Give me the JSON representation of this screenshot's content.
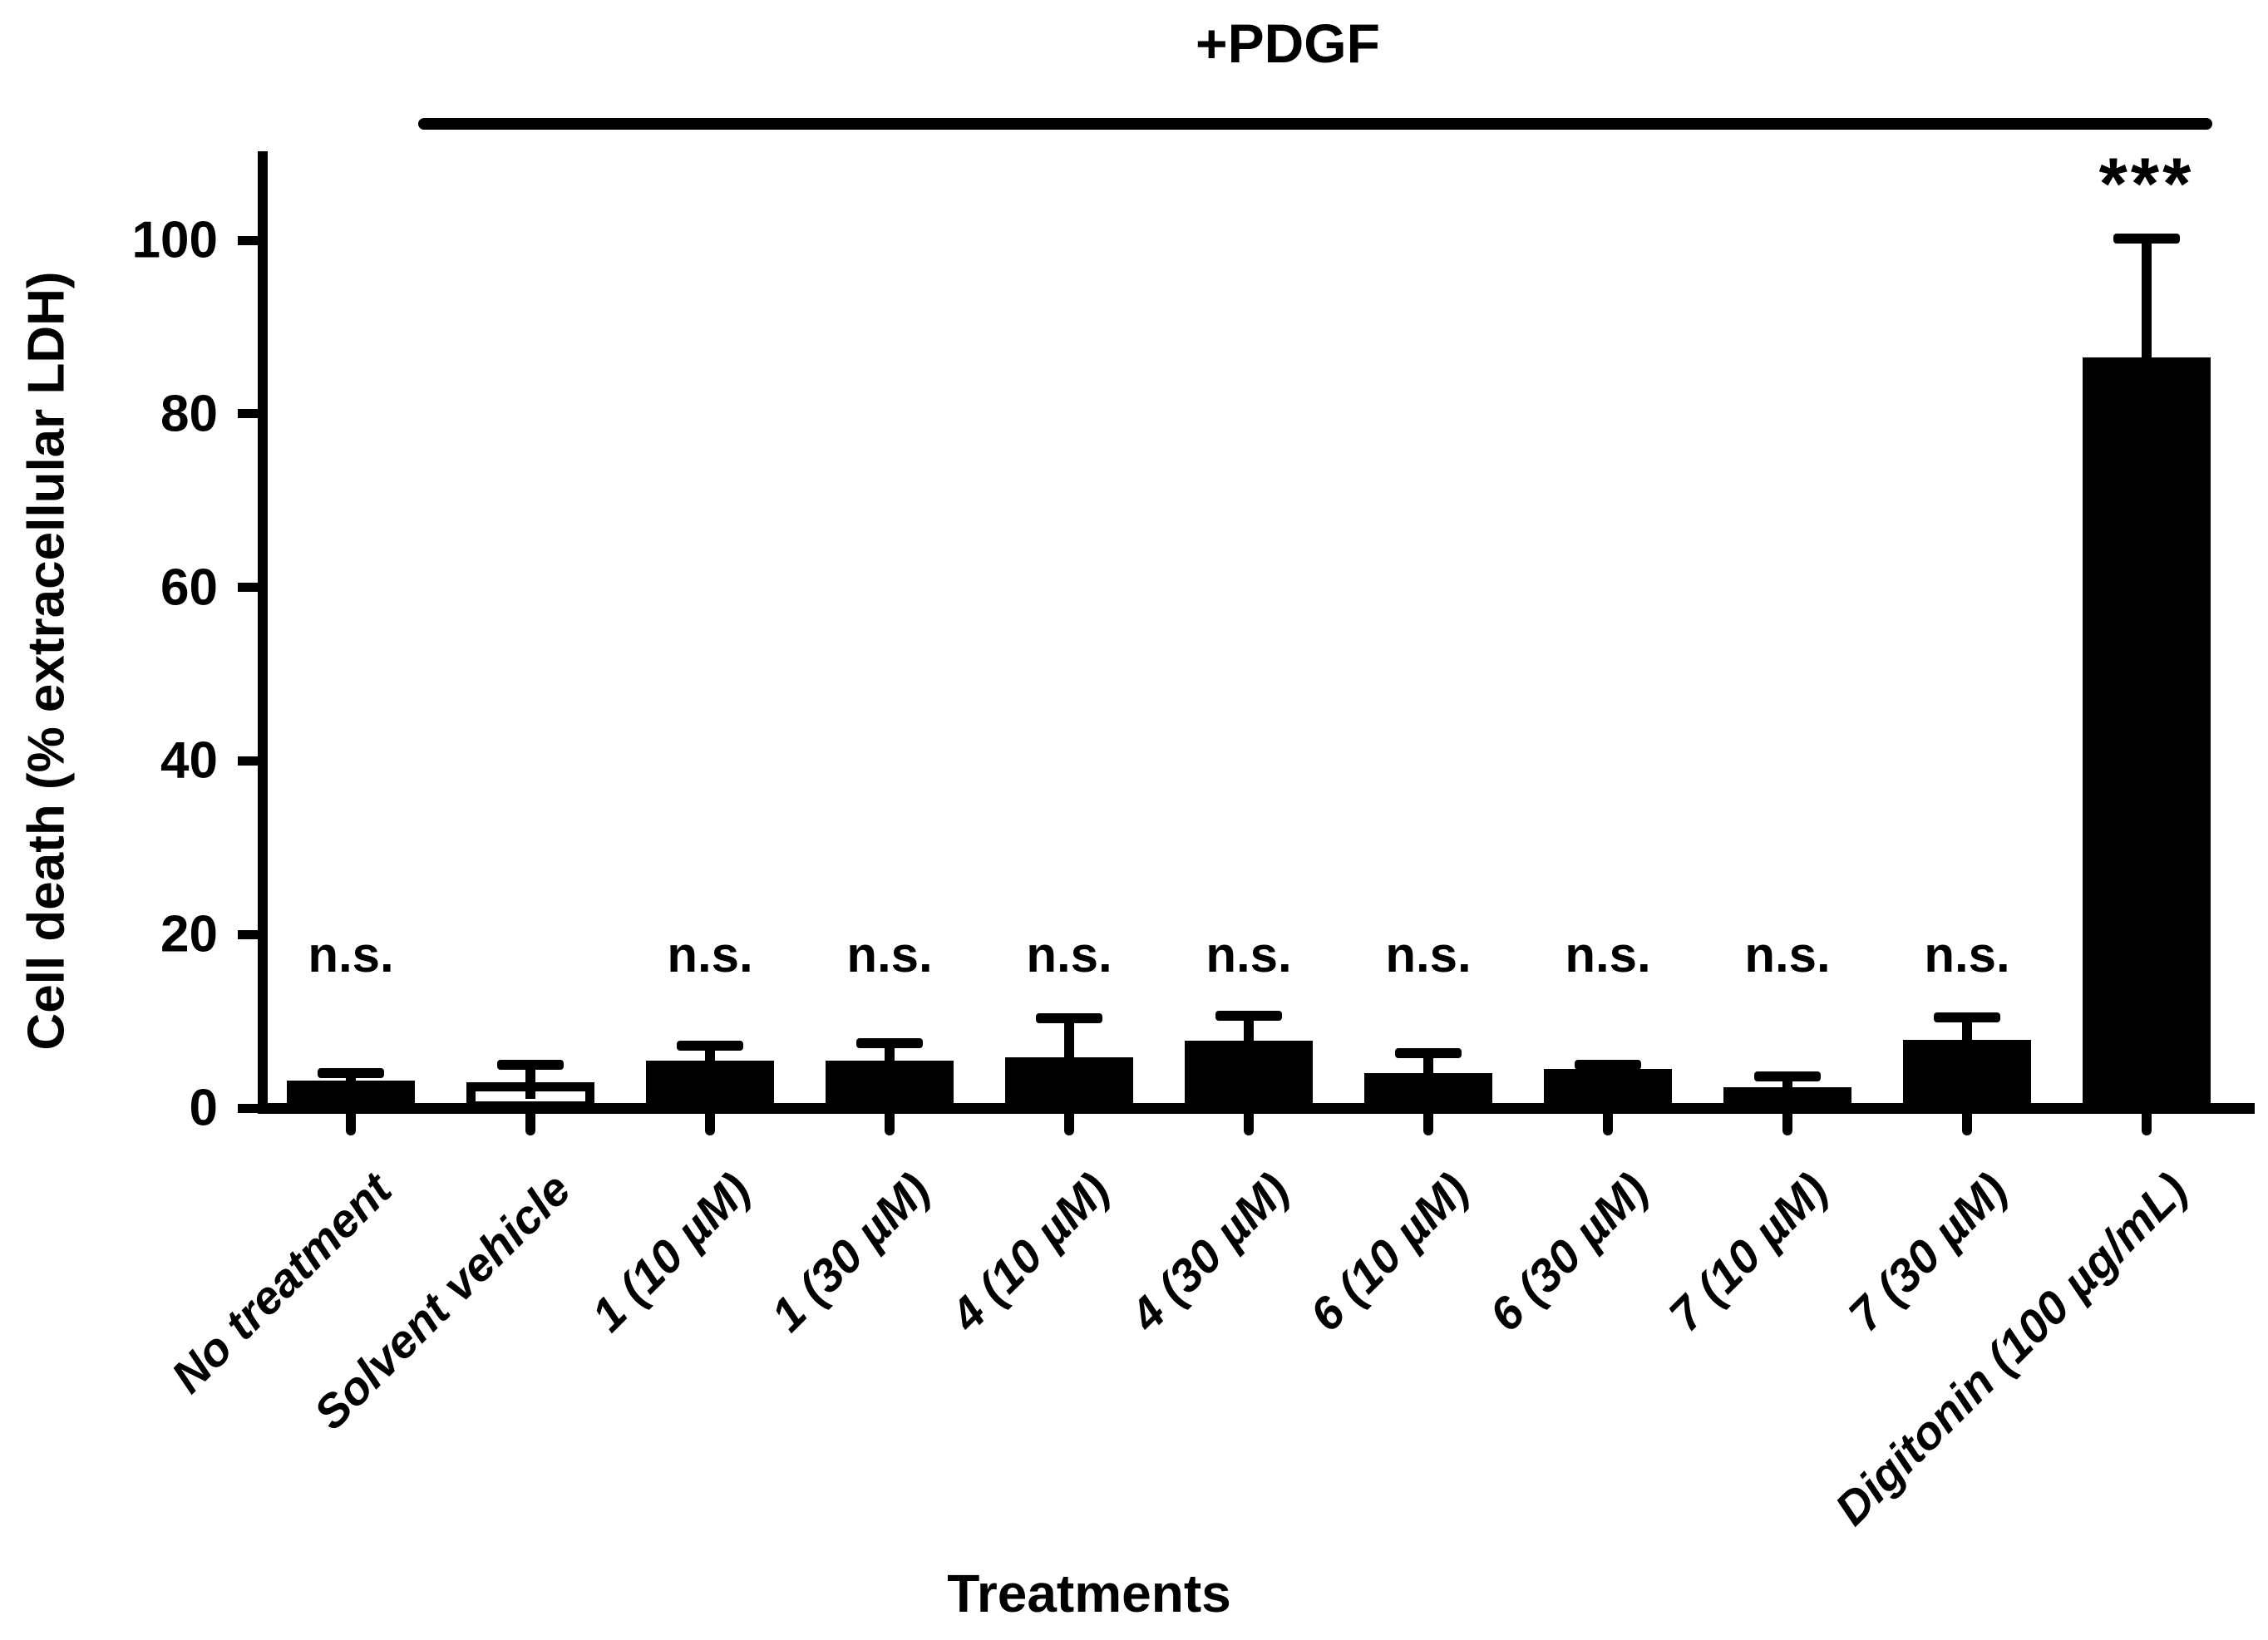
{
  "figure": {
    "annotation": {
      "label": "+PDGF"
    },
    "y_axis": {
      "title": "Cell death (% extracellular LDH)",
      "ticks": [
        "0",
        "20",
        "40",
        "60",
        "80",
        "100"
      ]
    },
    "x_axis": {
      "title": "Treatments"
    }
  },
  "chart_data": {
    "type": "bar",
    "title": "+PDGF",
    "xlabel": "Treatments",
    "ylabel": "Cell death (% extracellular LDH)",
    "ylim": [
      0,
      110
    ],
    "yticks": [
      0,
      20,
      40,
      60,
      80,
      100
    ],
    "grid": false,
    "legend": "none",
    "bar_color_default": "#000000",
    "categories": [
      "No treatment",
      "Solvent vehicle",
      "1 (10 µM)",
      "1 (30 µM)",
      "4 (10 µM)",
      "4 (30 µM)",
      "6 (10 µM)",
      "6 (30 µM)",
      "7 (10 µM)",
      "7 (30 µM)",
      "Digitonin (100 µg/mL)"
    ],
    "values": [
      3.2,
      3.0,
      5.5,
      5.5,
      5.8,
      7.8,
      4.0,
      4.5,
      2.4,
      7.9,
      86.5
    ],
    "errors_upper_sd": [
      0.8,
      2.0,
      1.7,
      2.0,
      4.5,
      2.8,
      2.3,
      0.5,
      1.2,
      2.5,
      13.7
    ],
    "significance": [
      "n.s.",
      "",
      "n.s.",
      "n.s.",
      "n.s.",
      "n.s.",
      "n.s.",
      "n.s.",
      "n.s.",
      "n.s.",
      "***"
    ],
    "bar_fill": [
      "black",
      "white",
      "black",
      "black",
      "black",
      "black",
      "black",
      "black",
      "black",
      "black",
      "black"
    ],
    "annotation_line": {
      "label": "+PDGF",
      "spans_categories": [
        "Solvent vehicle",
        "Digitonin (100 µg/mL)"
      ]
    }
  }
}
